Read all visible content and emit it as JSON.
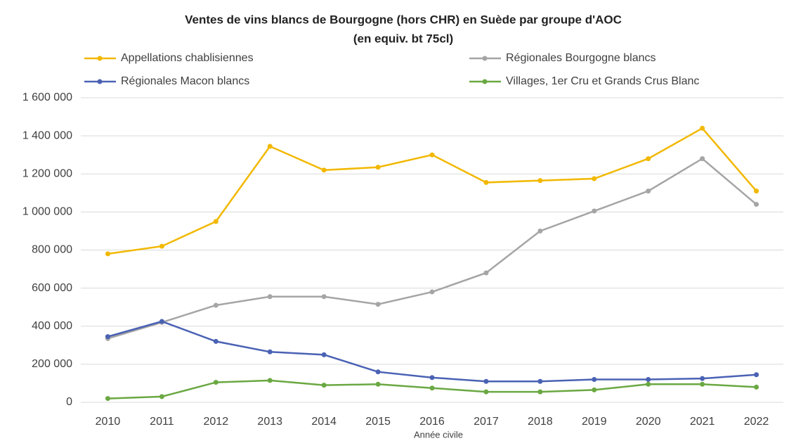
{
  "chart_data": {
    "type": "line",
    "title": "Ventes de vins blancs de Bourgogne (hors CHR) en Suède par groupe d'AOC",
    "subtitle": "(en equiv. bt 75cl)",
    "x_label": "Année civile",
    "categories": [
      "2010",
      "2011",
      "2012",
      "2013",
      "2014",
      "2015",
      "2016",
      "2017",
      "2018",
      "2019",
      "2020",
      "2021",
      "2022"
    ],
    "series": [
      {
        "name": "Appellations chablisiennes",
        "color": "#f2b800",
        "values": [
          780000,
          820000,
          950000,
          1345000,
          1220000,
          1235000,
          1300000,
          1155000,
          1165000,
          1175000,
          1280000,
          1440000,
          1110000
        ]
      },
      {
        "name": "Régionales Bourgogne blancs",
        "color": "#a5a5a5",
        "values": [
          335000,
          420000,
          510000,
          555000,
          555000,
          515000,
          580000,
          680000,
          900000,
          1005000,
          1110000,
          1280000,
          1040000
        ]
      },
      {
        "name": "Régionales Macon blancs",
        "color": "#4a62b4",
        "values": [
          345000,
          425000,
          320000,
          265000,
          250000,
          160000,
          130000,
          110000,
          110000,
          120000,
          120000,
          125000,
          145000
        ]
      },
      {
        "name": "Villages, 1er Cru et Grands Crus Blanc",
        "color": "#6aa842",
        "values": [
          20000,
          30000,
          105000,
          115000,
          90000,
          95000,
          75000,
          55000,
          55000,
          65000,
          95000,
          95000,
          80000
        ]
      }
    ],
    "ylim": [
      0,
      1600000
    ],
    "yticks": [
      0,
      {
        "value": 200000,
        "label": "200 000"
      },
      {
        "value": 400000,
        "label": "400 000"
      },
      {
        "value": 600000,
        "label": "600 000"
      },
      {
        "value": 800000,
        "label": "800 000"
      },
      {
        "value": 1000000,
        "label": "1 000 000"
      },
      {
        "value": 1200000,
        "label": "1 200 000"
      },
      {
        "value": 1400000,
        "label": "1 400 000"
      },
      {
        "value": 1600000,
        "label": "1 600 000"
      }
    ],
    "grid": true
  }
}
